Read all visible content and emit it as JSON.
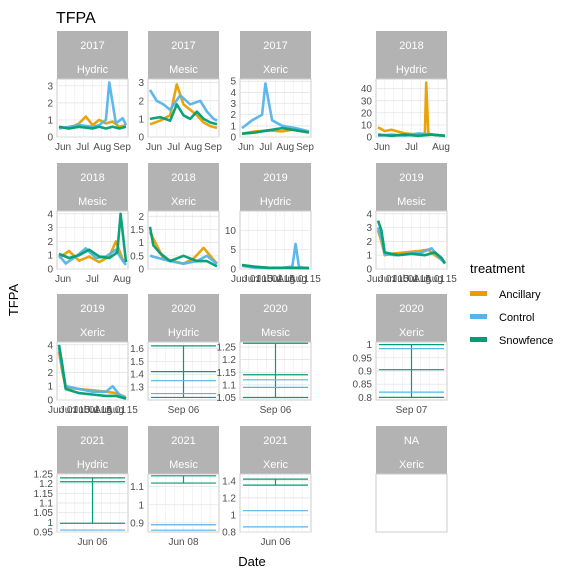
{
  "chart_data": {
    "type": "line",
    "title": "TFPA",
    "xlabel": "Date",
    "ylabel": "TFPA",
    "legend": {
      "title": "treatment",
      "placement": "right",
      "entries": [
        {
          "name": "Ancillary",
          "color": "#E69F00"
        },
        {
          "name": "Control",
          "color": "#56B4E9"
        },
        {
          "name": "Snowfence",
          "color": "#009E73"
        }
      ]
    },
    "grid": true,
    "panels": [
      {
        "year": "2017",
        "site": "Hydric",
        "ylim": [
          0,
          3.4
        ],
        "yticks": [
          0,
          1,
          2,
          3
        ],
        "xticks": [
          "Jun",
          "Jul",
          "Aug",
          "Sep"
        ],
        "series": [
          {
            "name": "Ancillary",
            "x": [
              0,
              0.15,
              0.3,
              0.4,
              0.5,
              0.6,
              0.7,
              0.8,
              0.9,
              1
            ],
            "y": [
              0.6,
              0.5,
              0.8,
              1.2,
              0.7,
              1.0,
              0.8,
              0.9,
              0.6,
              0.7
            ]
          },
          {
            "name": "Control",
            "x": [
              0,
              0.15,
              0.3,
              0.5,
              0.6,
              0.7,
              0.75,
              0.85,
              0.95,
              1
            ],
            "y": [
              0.5,
              0.6,
              0.7,
              0.6,
              0.7,
              1.0,
              3.2,
              0.8,
              1.1,
              0.7
            ]
          },
          {
            "name": "Snowfence",
            "x": [
              0,
              0.15,
              0.3,
              0.5,
              0.6,
              0.7,
              0.8,
              0.9,
              1
            ],
            "y": [
              0.6,
              0.5,
              0.6,
              0.5,
              0.6,
              0.5,
              0.6,
              0.5,
              0.6
            ]
          }
        ]
      },
      {
        "year": "2017",
        "site": "Mesic",
        "ylim": [
          0,
          3.2
        ],
        "yticks": [
          0,
          1,
          2,
          3
        ],
        "xticks": [
          "Jun",
          "Jul",
          "Aug",
          "Sep"
        ],
        "series": [
          {
            "name": "Ancillary",
            "x": [
              0,
              0.15,
              0.3,
              0.4,
              0.5,
              0.6,
              0.7,
              0.8,
              0.9,
              1
            ],
            "y": [
              0.7,
              0.9,
              1.2,
              2.9,
              1.8,
              1.5,
              1.2,
              0.8,
              0.6,
              0.5
            ]
          },
          {
            "name": "Control",
            "x": [
              0,
              0.1,
              0.2,
              0.3,
              0.45,
              0.6,
              0.75,
              0.85,
              0.95,
              1
            ],
            "y": [
              2.6,
              2.0,
              1.8,
              1.5,
              2.3,
              1.8,
              2.0,
              1.4,
              1.0,
              0.9
            ]
          },
          {
            "name": "Snowfence",
            "x": [
              0,
              0.15,
              0.3,
              0.4,
              0.5,
              0.6,
              0.7,
              0.8,
              0.9,
              1
            ],
            "y": [
              1.0,
              1.1,
              0.9,
              1.8,
              1.2,
              1.0,
              1.4,
              1.0,
              0.8,
              0.7
            ]
          }
        ]
      },
      {
        "year": "2017",
        "site": "Xeric",
        "ylim": [
          0,
          5.2
        ],
        "yticks": [
          0,
          1,
          2,
          3,
          4,
          5
        ],
        "xticks": [
          "Jun",
          "Jul",
          "Aug",
          "Sep"
        ],
        "series": [
          {
            "name": "Ancillary",
            "x": [
              0,
              0.2,
              0.4,
              0.6,
              0.8,
              1
            ],
            "y": [
              0.3,
              0.5,
              0.6,
              0.5,
              0.7,
              0.4
            ]
          },
          {
            "name": "Control",
            "x": [
              0,
              0.15,
              0.3,
              0.35,
              0.45,
              0.6,
              0.8,
              1
            ],
            "y": [
              0.8,
              1.5,
              2.0,
              4.8,
              1.5,
              1.0,
              0.8,
              0.5
            ]
          },
          {
            "name": "Snowfence",
            "x": [
              0,
              0.2,
              0.4,
              0.6,
              0.8,
              1
            ],
            "y": [
              0.3,
              0.4,
              0.6,
              0.8,
              0.6,
              0.4
            ]
          }
        ]
      },
      {
        "year": "2018",
        "site": "Hydric",
        "ylim": [
          0,
          48
        ],
        "yticks": [
          0,
          10,
          20,
          30,
          40
        ],
        "xticks": [
          "Jun",
          "Jul",
          "Aug"
        ],
        "series": [
          {
            "name": "Ancillary",
            "x": [
              0,
              0.1,
              0.2,
              0.4,
              0.6,
              0.7,
              0.72,
              0.75,
              0.8,
              1
            ],
            "y": [
              8,
              5,
              6,
              3,
              2,
              3,
              45,
              3,
              2,
              1
            ]
          },
          {
            "name": "Control",
            "x": [
              0,
              0.2,
              0.4,
              0.6,
              0.8,
              1
            ],
            "y": [
              1,
              2,
              1,
              3,
              2,
              1
            ]
          },
          {
            "name": "Snowfence",
            "x": [
              0,
              0.2,
              0.4,
              0.6,
              0.8,
              1
            ],
            "y": [
              2,
              1,
              2,
              1,
              2,
              1
            ]
          }
        ]
      },
      {
        "year": "2018",
        "site": "Mesic",
        "ylim": [
          0,
          4.2
        ],
        "yticks": [
          0,
          1,
          2,
          3,
          4
        ],
        "xticks": [
          "Jun",
          "Jul",
          "Aug"
        ],
        "series": [
          {
            "name": "Ancillary",
            "x": [
              0,
              0.15,
              0.3,
              0.45,
              0.6,
              0.75,
              0.85,
              0.95,
              1
            ],
            "y": [
              0.8,
              1.3,
              0.6,
              0.9,
              0.5,
              0.9,
              2.0,
              0.7,
              0.5
            ]
          },
          {
            "name": "Control",
            "x": [
              0,
              0.1,
              0.25,
              0.4,
              0.55,
              0.7,
              0.85,
              0.95,
              1
            ],
            "y": [
              1.0,
              0.4,
              0.9,
              1.5,
              0.8,
              0.9,
              1.4,
              0.6,
              0.3
            ]
          },
          {
            "name": "Snowfence",
            "x": [
              0,
              0.15,
              0.3,
              0.45,
              0.6,
              0.75,
              0.87,
              0.92,
              1
            ],
            "y": [
              1.1,
              0.8,
              1.0,
              1.4,
              0.9,
              0.8,
              1.2,
              4.0,
              0.5
            ]
          }
        ]
      },
      {
        "year": "2018",
        "site": "Xeric",
        "ylim": [
          0,
          2.2
        ],
        "yticks": [
          0,
          0.5,
          1.0,
          1.5,
          2.0
        ],
        "xticks": [],
        "series": [
          {
            "name": "Ancillary",
            "x": [
              0,
              0.1,
              0.2,
              0.35,
              0.5,
              0.65,
              0.8,
              1
            ],
            "y": [
              1.4,
              0.9,
              0.4,
              0.3,
              0.2,
              0.4,
              0.8,
              0.2
            ]
          },
          {
            "name": "Control",
            "x": [
              0,
              0.15,
              0.3,
              0.5,
              0.7,
              0.85,
              1
            ],
            "y": [
              0.5,
              0.4,
              0.3,
              0.2,
              0.3,
              0.5,
              0.2
            ]
          },
          {
            "name": "Snowfence",
            "x": [
              0,
              0.05,
              0.15,
              0.3,
              0.5,
              0.7,
              0.85,
              1
            ],
            "y": [
              1.6,
              0.9,
              0.6,
              0.3,
              0.5,
              0.3,
              0.3,
              0.1
            ]
          }
        ]
      },
      {
        "year": "2019",
        "site": "Hydric",
        "ylim": [
          0,
          15
        ],
        "yticks": [
          0,
          5,
          10
        ],
        "xticks": [
          "Jun 01",
          "Jun 15",
          "Jul 01",
          "Jul 15",
          "Aug 01",
          "Aug 15"
        ],
        "series": [
          {
            "name": "Ancillary",
            "x": [
              0,
              0.2,
              0.4,
              0.6,
              0.8,
              1
            ],
            "y": [
              1.0,
              0.5,
              0.3,
              0.3,
              0.2,
              0.2
            ]
          },
          {
            "name": "Control",
            "x": [
              0,
              0.2,
              0.4,
              0.6,
              0.75,
              0.8,
              0.85,
              0.9,
              1
            ],
            "y": [
              0.8,
              0.3,
              0.2,
              0.3,
              0.6,
              6.5,
              0.6,
              0.4,
              0.3
            ]
          },
          {
            "name": "Snowfence",
            "x": [
              0,
              0.2,
              0.4,
              0.6,
              0.8,
              1
            ],
            "y": [
              1.0,
              0.6,
              0.3,
              0.3,
              0.3,
              0.2
            ]
          }
        ]
      },
      {
        "year": "2019",
        "site": "Mesic",
        "ylim": [
          0,
          4.2
        ],
        "yticks": [
          0,
          1,
          2,
          3,
          4
        ],
        "xticks": [
          "Jun 01",
          "Jun 15",
          "Jul 01",
          "Jul 15",
          "Aug 01",
          "Aug 15"
        ],
        "series": [
          {
            "name": "Ancillary",
            "x": [
              0,
              0.05,
              0.1,
              0.2,
              0.4,
              0.6,
              0.75,
              0.85,
              1
            ],
            "y": [
              2.8,
              2.0,
              1.0,
              1.1,
              1.2,
              1.3,
              1.4,
              1.0,
              0.5
            ]
          },
          {
            "name": "Control",
            "x": [
              0,
              0.05,
              0.1,
              0.25,
              0.45,
              0.65,
              0.8,
              0.9,
              1
            ],
            "y": [
              3.0,
              2.2,
              1.1,
              1.0,
              1.1,
              1.2,
              1.5,
              0.9,
              0.4
            ]
          },
          {
            "name": "Snowfence",
            "x": [
              0,
              0.05,
              0.1,
              0.3,
              0.5,
              0.7,
              0.85,
              0.95,
              1
            ],
            "y": [
              3.5,
              2.8,
              1.2,
              1.0,
              1.1,
              1.0,
              1.2,
              0.8,
              0.4
            ]
          }
        ]
      },
      {
        "year": "2019",
        "site": "Xeric",
        "ylim": [
          0,
          4.2
        ],
        "yticks": [
          0,
          1,
          2,
          3,
          4
        ],
        "xticks": [
          "Jun 01",
          "Jun 15",
          "Jul 01",
          "Jul 15",
          "Aug 01",
          "Aug 15"
        ],
        "series": [
          {
            "name": "Ancillary",
            "x": [
              0,
              0.05,
              0.1,
              0.3,
              0.5,
              0.7,
              0.85,
              1
            ],
            "y": [
              3.5,
              2.0,
              0.9,
              0.8,
              0.7,
              0.6,
              0.5,
              0.2
            ]
          },
          {
            "name": "Control",
            "x": [
              0,
              0.05,
              0.1,
              0.3,
              0.5,
              0.7,
              0.8,
              0.9,
              1
            ],
            "y": [
              3.8,
              2.2,
              1.0,
              0.8,
              0.6,
              0.6,
              1.0,
              0.4,
              0.1
            ]
          },
          {
            "name": "Snowfence",
            "x": [
              0,
              0.05,
              0.1,
              0.3,
              0.5,
              0.7,
              0.85,
              1
            ],
            "y": [
              4.0,
              2.5,
              0.8,
              0.5,
              0.4,
              0.3,
              0.3,
              0.1
            ]
          }
        ]
      },
      {
        "year": "2020",
        "site": "Hydric",
        "ylim": [
          1.2,
          1.65
        ],
        "yticks": [
          1.3,
          1.4,
          1.5,
          1.6
        ],
        "xticks": [
          "Sep 06"
        ],
        "bars": [
          {
            "name": "Snowfence",
            "values": [
              1.62,
              1.42,
              1.22
            ]
          },
          {
            "name": "Control",
            "values": [
              1.35,
              1.25
            ]
          }
        ]
      },
      {
        "year": "2020",
        "site": "Mesic",
        "ylim": [
          1.04,
          1.27
        ],
        "yticks": [
          1.05,
          1.1,
          1.15,
          1.2,
          1.25
        ],
        "xticks": [
          "Sep 06"
        ],
        "bars": [
          {
            "name": "Snowfence",
            "values": [
              1.265,
              1.14,
              1.05
            ]
          },
          {
            "name": "Control",
            "values": [
              1.12,
              1.09
            ]
          }
        ]
      },
      {
        "year": "2020",
        "site": "Xeric",
        "ylim": [
          0.79,
          1.01
        ],
        "yticks": [
          0.8,
          0.85,
          0.9,
          0.95,
          1.0
        ],
        "xticks": [
          "Sep 07"
        ],
        "bars": [
          {
            "name": "Snowfence",
            "values": [
              1.0,
              0.905,
              0.8
            ]
          },
          {
            "name": "Control",
            "values": [
              0.985,
              0.82
            ]
          }
        ]
      },
      {
        "year": "2021",
        "site": "Hydric",
        "ylim": [
          0.95,
          1.25
        ],
        "yticks": [
          0.95,
          1.0,
          1.05,
          1.1,
          1.15,
          1.2,
          1.25
        ],
        "xticks": [
          "Jun 06"
        ],
        "bars": [
          {
            "name": "Snowfence",
            "values": [
              1.23,
              1.21,
              0.995
            ]
          },
          {
            "name": "Control",
            "values": [
              0.96
            ]
          }
        ]
      },
      {
        "year": "2021",
        "site": "Mesic",
        "ylim": [
          0.85,
          1.17
        ],
        "yticks": [
          0.9,
          1.0,
          1.1
        ],
        "xticks": [
          "Jun 08"
        ],
        "bars": [
          {
            "name": "Snowfence",
            "values": [
              1.16,
              1.12
            ]
          },
          {
            "name": "Control",
            "values": [
              0.89,
              0.86
            ]
          }
        ]
      },
      {
        "year": "2021",
        "site": "Xeric",
        "ylim": [
          0.8,
          1.48
        ],
        "yticks": [
          0.8,
          1.0,
          1.2,
          1.4
        ],
        "xticks": [
          "Jun 06"
        ],
        "bars": [
          {
            "name": "Snowfence",
            "values": [
              1.42,
              1.35
            ]
          },
          {
            "name": "Control",
            "values": [
              1.05,
              0.86
            ]
          }
        ]
      },
      {
        "year": "NA",
        "site": "Xeric",
        "ylim": null,
        "yticks": [],
        "xticks": [],
        "empty": true
      }
    ]
  }
}
